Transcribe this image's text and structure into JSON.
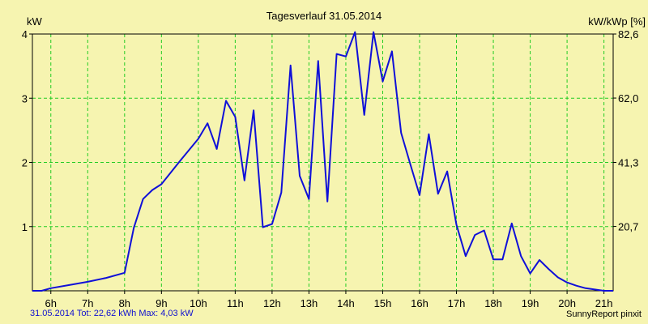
{
  "colors": {
    "background": "#f6f4b0",
    "plot_area": "#f6f4b0",
    "grid": "#22cc22",
    "line": "#1010d8",
    "footer_text": "#1010d0"
  },
  "footer": {
    "left": "31.05.2014 Tot: 22,62 kWh Max: 4,03 kW",
    "right": "SunnyReport pinxit"
  },
  "chart_data": {
    "type": "line",
    "title": "Tagesverlauf 31.05.2014",
    "ylabel": "kW",
    "ylabel_right": "kW/kWp [%]",
    "ylim": [
      0,
      4
    ],
    "yticks": [
      1,
      2,
      3,
      4
    ],
    "yticklabels": [
      "1",
      "2",
      "3",
      "4"
    ],
    "ylim_right": [
      0,
      82.6
    ],
    "yticks_right": [
      20.7,
      41.3,
      62.0,
      82.6
    ],
    "yticklabels_right": [
      "20,7",
      "41,3",
      "62,0",
      "82,6"
    ],
    "xlim": [
      5.5,
      21.25
    ],
    "xticks": [
      6,
      7,
      8,
      9,
      10,
      11,
      12,
      13,
      14,
      15,
      16,
      17,
      18,
      19,
      20,
      21
    ],
    "xticklabels": [
      "6h",
      "7h",
      "8h",
      "9h",
      "10h",
      "11h",
      "12h",
      "13h",
      "14h",
      "15h",
      "16h",
      "17h",
      "18h",
      "19h",
      "20h",
      "21h"
    ],
    "grid": true,
    "series": [
      {
        "x": [
          5.5,
          5.75,
          6.0,
          6.5,
          7.0,
          7.5,
          8.0,
          8.25,
          8.5,
          8.75,
          9.0,
          9.5,
          10.0,
          10.25,
          10.5,
          10.75,
          11.0,
          11.25,
          11.5,
          11.75,
          12.0,
          12.25,
          12.5,
          12.75,
          13.0,
          13.25,
          13.5,
          13.75,
          14.0,
          14.25,
          14.5,
          14.75,
          15.0,
          15.25,
          15.5,
          15.75,
          16.0,
          16.25,
          16.5,
          16.75,
          17.0,
          17.25,
          17.5,
          17.75,
          18.0,
          18.25,
          18.5,
          18.75,
          19.0,
          19.25,
          19.5,
          19.75,
          20.0,
          20.25,
          20.5,
          20.75,
          21.0,
          21.25
        ],
        "values": [
          0.0,
          0.0,
          0.04,
          0.09,
          0.14,
          0.2,
          0.28,
          0.98,
          1.43,
          1.57,
          1.66,
          2.02,
          2.37,
          2.61,
          2.21,
          2.96,
          2.71,
          1.72,
          2.81,
          0.99,
          1.04,
          1.53,
          3.51,
          1.79,
          1.43,
          3.58,
          1.39,
          3.69,
          3.65,
          4.03,
          2.74,
          4.03,
          3.26,
          3.73,
          2.46,
          1.97,
          1.49,
          2.44,
          1.51,
          1.86,
          1.03,
          0.54,
          0.87,
          0.94,
          0.49,
          0.49,
          1.05,
          0.54,
          0.27,
          0.48,
          0.34,
          0.21,
          0.13,
          0.08,
          0.04,
          0.02,
          0.0,
          0.0
        ]
      }
    ]
  }
}
